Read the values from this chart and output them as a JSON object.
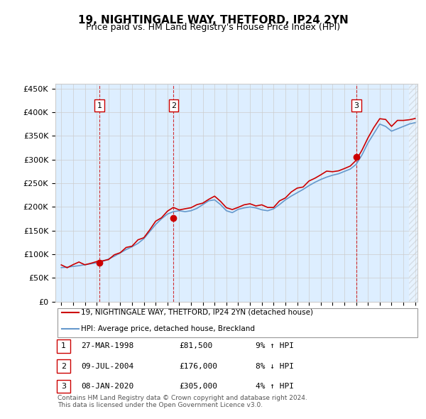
{
  "title": "19, NIGHTINGALE WAY, THETFORD, IP24 2YN",
  "subtitle": "Price paid vs. HM Land Registry's House Price Index (HPI)",
  "ylabel": "",
  "ylim": [
    0,
    460000
  ],
  "yticks": [
    0,
    50000,
    100000,
    150000,
    200000,
    250000,
    300000,
    350000,
    400000,
    450000
  ],
  "ytick_labels": [
    "£0",
    "£50K",
    "£100K",
    "£150K",
    "£200K",
    "£250K",
    "£300K",
    "£350K",
    "£400K",
    "£450K"
  ],
  "sale_dates_num": [
    1998.23,
    2004.52,
    2020.03
  ],
  "sale_prices": [
    81500,
    176000,
    305000
  ],
  "sale_labels": [
    "1",
    "2",
    "3"
  ],
  "sale_info": [
    {
      "label": "1",
      "date": "27-MAR-1998",
      "price": "£81,500",
      "hpi": "9% ↑ HPI"
    },
    {
      "label": "2",
      "date": "09-JUL-2004",
      "price": "£176,000",
      "hpi": "8% ↓ HPI"
    },
    {
      "label": "3",
      "date": "08-JAN-2020",
      "price": "£305,000",
      "hpi": "4% ↑ HPI"
    }
  ],
  "legend_property_label": "19, NIGHTINGALE WAY, THETFORD, IP24 2YN (detached house)",
  "legend_hpi_label": "HPI: Average price, detached house, Breckland",
  "property_line_color": "#cc0000",
  "hpi_line_color": "#6699cc",
  "sale_marker_color": "#cc0000",
  "vline_color": "#cc0000",
  "grid_color": "#cccccc",
  "bg_color": "#ddeeff",
  "footnote": "Contains HM Land Registry data © Crown copyright and database right 2024.\nThis data is licensed under the Open Government Licence v3.0."
}
